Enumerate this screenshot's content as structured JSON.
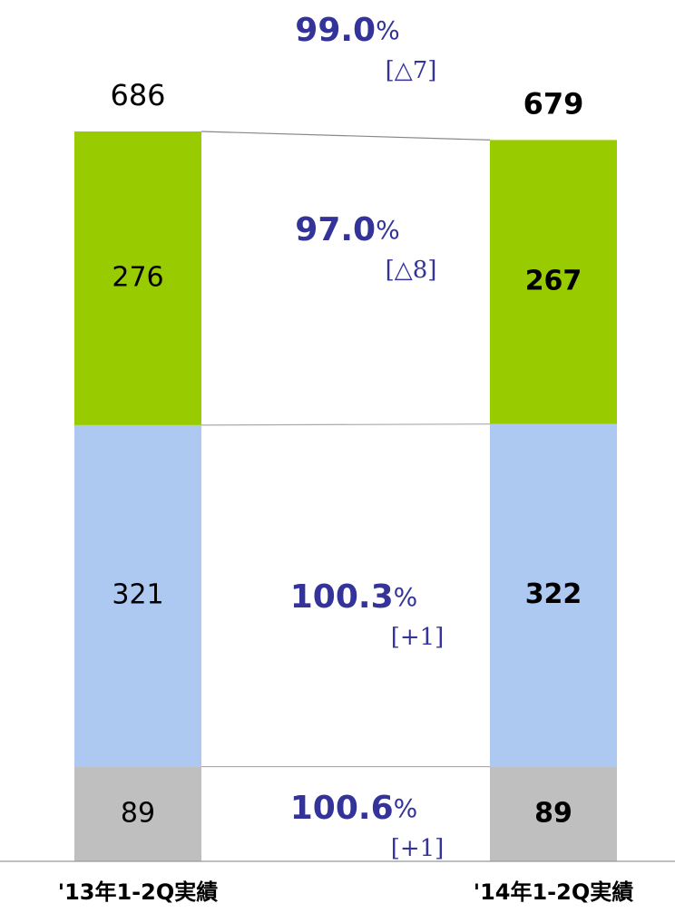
{
  "chart_data": {
    "type": "stacked_bar",
    "categories": [
      "'13年1-2Q実績",
      "'14年1-2Q実績"
    ],
    "series": [
      {
        "color": "#bfbfbf",
        "values": [
          89,
          89
        ]
      },
      {
        "color": "#adc9f2",
        "values": [
          321,
          322
        ]
      },
      {
        "color": "#99cc00",
        "values": [
          276,
          267
        ]
      }
    ],
    "totals": [
      686,
      679
    ],
    "annotations": [
      {
        "ratio": "99.0",
        "unit": "%",
        "diff": "[△7]"
      },
      {
        "ratio": "97.0",
        "unit": "%",
        "diff": "[△8]"
      },
      {
        "ratio": "100.3",
        "unit": "%",
        "diff": "[+1]"
      },
      {
        "ratio": "100.6",
        "unit": "%",
        "diff": "[+1]"
      }
    ]
  }
}
